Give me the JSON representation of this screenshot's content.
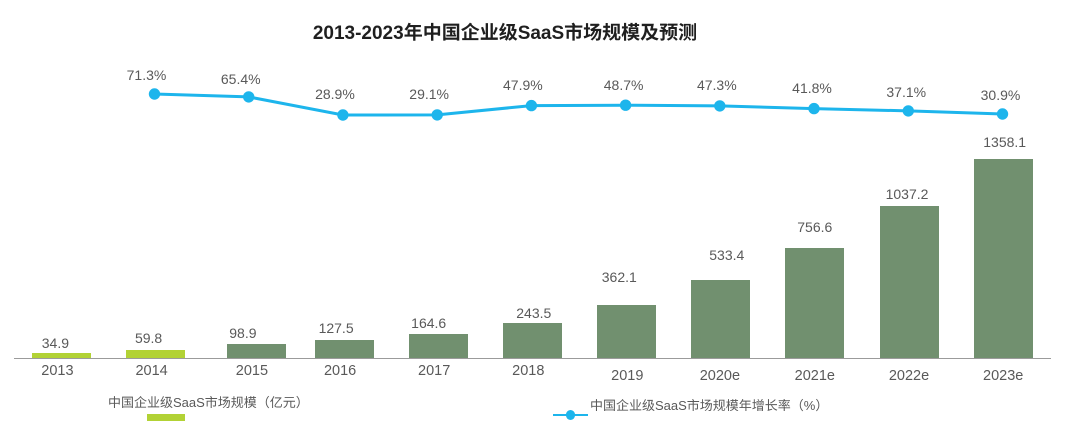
{
  "title": "2013-2023年中国企业级SaaS市场规模及预测",
  "chart_data": {
    "type": "bar",
    "title": "2013-2023年中国企业级SaaS市场规模及预测",
    "categories": [
      "2013",
      "2014",
      "2015",
      "2016",
      "2017",
      "2018",
      "2019",
      "2020e",
      "2021e",
      "2022e",
      "2023e"
    ],
    "series": [
      {
        "name": "中国企业级SaaS市场规模（亿元）",
        "type": "bar",
        "unit": "亿元",
        "values": [
          34.9,
          59.8,
          98.9,
          127.5,
          164.6,
          243.5,
          362.1,
          533.4,
          756.6,
          1037.2,
          1358.1
        ],
        "highlight_categories": [
          "2013",
          "2014"
        ]
      },
      {
        "name": "中国企业级SaaS市场规模年增长率（%）",
        "type": "line",
        "unit": "%",
        "start_category": "2014",
        "values": [
          71.3,
          65.4,
          28.9,
          29.1,
          47.9,
          48.7,
          47.3,
          41.8,
          37.1,
          30.9
        ]
      }
    ],
    "xlabel": "",
    "ylabel": "",
    "value_axis_visible": false,
    "grid": false,
    "legend_position": "bottom"
  },
  "legend": {
    "bar_label": "中国企业级SaaS市场规模（亿元）",
    "line_label": "中国企业级SaaS市场规模年增长率（%）"
  },
  "colors": {
    "bar_highlight": "#b2d235",
    "bar_default": "#71906f",
    "line": "#1db5ec",
    "label_text": "#595959",
    "title_text": "#1f1f1f",
    "axis_line": "#9b9b9b",
    "background": "#ffffff"
  }
}
